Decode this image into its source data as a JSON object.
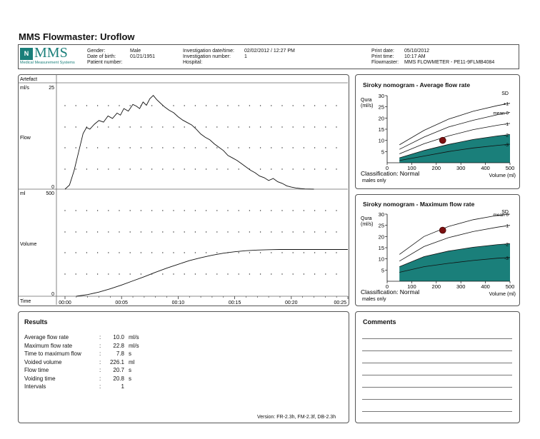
{
  "page_title": "MMS Flowmaster: Uroflow",
  "logo": {
    "text": "MMS",
    "mark": "N",
    "subtitle": "Medical Measurement Systems"
  },
  "header": {
    "gender_label": "Gender:",
    "gender_value": "Male",
    "dob_label": "Date of birth:",
    "dob_value": "01/21/1951",
    "patient_label": "Patient number:",
    "patient_value": "",
    "inv_date_label": "Investigation date/time:",
    "inv_date_value": "02/02/2012 / 12:27 PM",
    "inv_num_label": "Investigation number:",
    "inv_num_value": "1",
    "hospital_label": "Hospital:",
    "hospital_value": "",
    "print_date_label": "Print date:",
    "print_date_value": "05/10/2012",
    "print_time_label": "Print time:",
    "print_time_value": "10:17 AM",
    "flowmaster_label": "Flowmaster:",
    "flowmaster_value": "MMS FLOWMETER - PE11-9FLMB4084"
  },
  "main_chart_labels": {
    "artefact": "Artefact",
    "flow_unit": "ml/s",
    "flow_max": "25",
    "flow_zero": "0",
    "flow_label": "Flow",
    "vol_unit": "ml",
    "vol_max": "500",
    "vol_zero": "0",
    "vol_label": "Volume",
    "time_label": "Time"
  },
  "nomogram_avg": {
    "title": "Siroky nomogram - Average flow rate",
    "ylabel1": "Qura",
    "ylabel2": "(ml/s)",
    "sd": "SD",
    "classification": "Classification: Normal",
    "note": "males only",
    "xlabel": "Volume (ml)",
    "curve_labels": [
      "+1",
      "mean 0",
      "-1",
      "-2",
      "-3"
    ]
  },
  "nomogram_max": {
    "title": "Siroky nomogram - Maximum flow rate",
    "ylabel1": "Qura",
    "ylabel2": "(ml/s)",
    "sd": "SD",
    "classification": "Classification: Normal",
    "note": "males only",
    "xlabel": "Volume (ml)",
    "curve_labels": [
      "mean 0",
      "-1",
      "-2",
      "-3"
    ]
  },
  "results": {
    "title": "Results",
    "rows": [
      {
        "label": "Average flow rate",
        "colon": ":",
        "value": "10.0",
        "unit": "ml/s"
      },
      {
        "label": "Maximum flow rate",
        "colon": ":",
        "value": "22.8",
        "unit": "ml/s"
      },
      {
        "label": "Time to maximum flow",
        "colon": ":",
        "value": "7.8",
        "unit": "s"
      },
      {
        "label": "Voided volume",
        "colon": ":",
        "value": "226.1",
        "unit": "ml"
      },
      {
        "label": "Flow time",
        "colon": ":",
        "value": "20.7",
        "unit": "s"
      },
      {
        "label": "Voiding time",
        "colon": ":",
        "value": "20.8",
        "unit": "s"
      },
      {
        "label": "Intervals",
        "colon": ":",
        "value": "1",
        "unit": ""
      }
    ],
    "version": "Version: FR-2.3h, FM-2.3f, DB-2.3h"
  },
  "comments": {
    "title": "Comments"
  },
  "colors": {
    "teal": "#1a7f7a",
    "point": "#7a1010"
  },
  "chart_data": [
    {
      "type": "line",
      "name_ref": "Flow",
      "x_unit": "time mm:ss",
      "x_tick_labels": [
        "00:00",
        "00:05",
        "00:10",
        "00:15",
        "00:20",
        "00:25"
      ],
      "xlim": [
        0,
        25
      ],
      "ylim": [
        0,
        25
      ],
      "ylabel": "Flow",
      "y_unit": "ml/s",
      "x": [
        0.0,
        0.4,
        0.8,
        1.2,
        1.6,
        1.9,
        2.2,
        2.6,
        3.0,
        3.4,
        3.8,
        4.2,
        4.6,
        4.9,
        5.2,
        5.6,
        6.0,
        6.3,
        6.6,
        6.9,
        7.2,
        7.5,
        7.8,
        8.1,
        8.4,
        8.8,
        9.2,
        9.6,
        10.0,
        10.4,
        10.8,
        11.2,
        11.6,
        12.0,
        12.4,
        12.8,
        13.2,
        13.6,
        14.0,
        14.4,
        14.8,
        15.2,
        15.6,
        16.0,
        16.4,
        16.8,
        17.2,
        17.6,
        18.0,
        18.4,
        18.8,
        19.2,
        19.6,
        20.0,
        20.4,
        20.8,
        21.2,
        22.0
      ],
      "y": [
        0,
        1.0,
        4.5,
        9.0,
        13.5,
        15.0,
        14.6,
        15.8,
        16.7,
        16.3,
        17.8,
        17.2,
        18.5,
        18.0,
        19.6,
        19.0,
        20.6,
        20.2,
        19.6,
        21.2,
        20.4,
        22.0,
        22.8,
        21.8,
        21.0,
        20.0,
        19.2,
        18.6,
        17.6,
        16.8,
        16.2,
        15.6,
        14.6,
        13.4,
        12.6,
        12.0,
        11.0,
        10.2,
        9.4,
        8.2,
        7.6,
        7.0,
        6.2,
        5.4,
        4.6,
        4.0,
        3.2,
        2.8,
        2.1,
        2.6,
        1.8,
        1.4,
        0.8,
        0.5,
        0.3,
        0.15,
        0.05,
        0
      ]
    },
    {
      "type": "line",
      "name_ref": "Volume",
      "x_unit": "time mm:ss",
      "x_tick_labels": [
        "00:00",
        "00:05",
        "00:10",
        "00:15",
        "00:20",
        "00:25"
      ],
      "xlim": [
        0,
        25
      ],
      "ylim": [
        0,
        500
      ],
      "ylabel": "Volume",
      "y_unit": "ml",
      "x": [
        1.0,
        2.0,
        3.0,
        4.0,
        5.0,
        6.0,
        7.0,
        8.0,
        9.0,
        10.0,
        11.0,
        12.0,
        13.0,
        14.0,
        15.0,
        16.0,
        17.0,
        18.0,
        19.0,
        20.0,
        21.0,
        22.0,
        23.0,
        25.0
      ],
      "y": [
        0,
        8,
        20,
        36,
        54,
        74,
        94,
        116,
        136,
        154,
        172,
        186,
        198,
        208,
        215,
        220,
        223,
        225,
        226,
        226,
        226,
        226,
        226,
        226
      ]
    },
    {
      "type": "line",
      "name_ref": "nomogram_avg",
      "xlim": [
        0,
        500
      ],
      "ylim": [
        0,
        30
      ],
      "x_ticks": [
        0,
        100,
        200,
        300,
        400,
        500
      ],
      "y_ticks": [
        5,
        10,
        15,
        20,
        25,
        30
      ],
      "x": [
        50,
        150,
        250,
        350,
        450,
        500
      ],
      "series": [
        {
          "sd": "+1",
          "values": [
            8,
            14.5,
            19.5,
            23,
            25.6,
            26.6
          ]
        },
        {
          "sd": "0",
          "values": [
            6,
            11.5,
            16,
            19,
            21.5,
            22.5
          ]
        },
        {
          "sd": "-1",
          "values": [
            4,
            8.5,
            12,
            14.8,
            16.8,
            17.6
          ]
        },
        {
          "sd": "-2",
          "values": [
            2.2,
            5.5,
            8.2,
            10.4,
            12,
            12.6
          ]
        },
        {
          "sd": "-3",
          "values": [
            1,
            3,
            5,
            6.6,
            7.8,
            8.3
          ]
        }
      ],
      "point": {
        "x": 226,
        "y": 10.0
      }
    },
    {
      "type": "line",
      "name_ref": "nomogram_max",
      "xlim": [
        0,
        500
      ],
      "ylim": [
        0,
        30
      ],
      "x_ticks": [
        0,
        100,
        200,
        300,
        400,
        500
      ],
      "y_ticks": [
        5,
        10,
        15,
        20,
        25,
        30
      ],
      "x": [
        50,
        150,
        250,
        350,
        450,
        500
      ],
      "series": [
        {
          "sd": "0",
          "values": [
            12,
            20,
            24.5,
            27.5,
            29.5,
            30.3
          ]
        },
        {
          "sd": "-1",
          "values": [
            9,
            15.5,
            19.5,
            22.2,
            24.2,
            25
          ]
        },
        {
          "sd": "-2",
          "values": [
            6.5,
            11,
            13.5,
            15.2,
            16.4,
            16.8
          ]
        },
        {
          "sd": "-3",
          "values": [
            4,
            6.5,
            8,
            9.3,
            10.3,
            10.6
          ]
        }
      ],
      "point": {
        "x": 226,
        "y": 22.8
      }
    }
  ]
}
